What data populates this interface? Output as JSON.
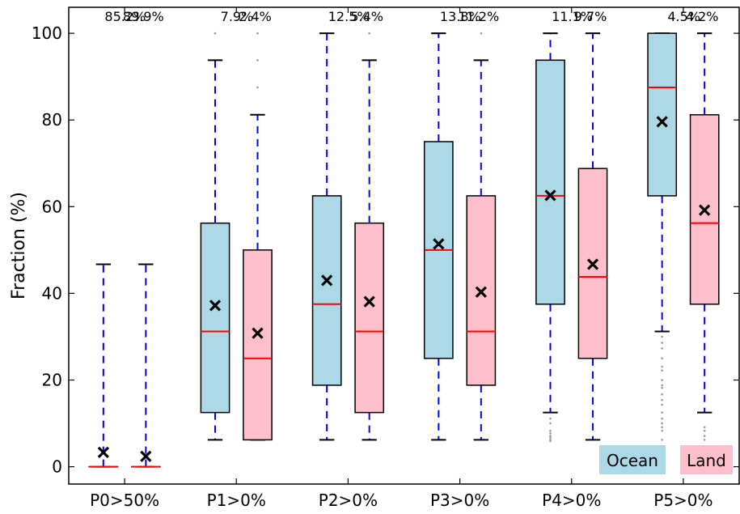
{
  "chart_data": {
    "type": "box",
    "ylabel": "Fraction (%)",
    "ylim": [
      -4,
      106
    ],
    "yticks": [
      0,
      20,
      40,
      60,
      80,
      100
    ],
    "categories": [
      "P0>50%",
      "P1>0%",
      "P2>0%",
      "P3>0%",
      "P4>0%",
      "P5>0%"
    ],
    "series": [
      {
        "name": "Ocean",
        "box_color": "#add8e6",
        "percent_labels": [
          "85.2%",
          "7.9%",
          "12.5%",
          "13.8%",
          "11.1%",
          "4.5%"
        ],
        "boxes": [
          {
            "whislo": 0,
            "q1": 0,
            "median": 0,
            "q3": 0,
            "whishi": 46.7,
            "mean": 3.3,
            "fliers": []
          },
          {
            "whislo": 6.2,
            "q1": 12.5,
            "median": 31.2,
            "q3": 56.2,
            "whishi": 93.8,
            "mean": 37.2,
            "fliers": [
              100
            ]
          },
          {
            "whislo": 6.2,
            "q1": 18.8,
            "median": 37.5,
            "q3": 62.5,
            "whishi": 100,
            "mean": 43.0,
            "fliers": []
          },
          {
            "whislo": 6.2,
            "q1": 25,
            "median": 50,
            "q3": 75,
            "whishi": 100,
            "mean": 51.4,
            "fliers": []
          },
          {
            "whislo": 12.5,
            "q1": 37.5,
            "median": 62.5,
            "q3": 93.8,
            "whishi": 100,
            "mean": 62.6,
            "fliers": [
              11.1,
              10.0,
              8.3,
              7.7,
              7.1,
              6.7,
              6.2,
              5.9
            ]
          },
          {
            "whislo": 31.2,
            "q1": 62.5,
            "median": 87.5,
            "q3": 100,
            "whishi": 100,
            "mean": 79.6,
            "fliers": [
              30,
              28.6,
              27.3,
              25,
              23.1,
              22.2,
              20,
              18.8,
              18.2,
              16.7,
              15.4,
              14.3,
              12.5,
              11.1,
              10,
              9.1,
              8.3,
              6.2
            ]
          }
        ]
      },
      {
        "name": "Land",
        "box_color": "#ffc0cb",
        "percent_labels": [
          "89.9%",
          "2.4%",
          "5.4%",
          "11.2%",
          "9.7%",
          "4.2%"
        ],
        "boxes": [
          {
            "whislo": 0,
            "q1": 0,
            "median": 0,
            "q3": 0,
            "whishi": 46.7,
            "mean": 2.4,
            "fliers": []
          },
          {
            "whislo": 6.2,
            "q1": 6.2,
            "median": 25,
            "q3": 50,
            "whishi": 81.2,
            "mean": 30.8,
            "fliers": [
              87.5,
              93.8,
              100
            ]
          },
          {
            "whislo": 6.2,
            "q1": 12.5,
            "median": 31.2,
            "q3": 56.2,
            "whishi": 93.8,
            "mean": 38.1,
            "fliers": [
              100
            ]
          },
          {
            "whislo": 6.2,
            "q1": 18.8,
            "median": 31.2,
            "q3": 62.5,
            "whishi": 93.8,
            "mean": 40.3,
            "fliers": [
              100
            ]
          },
          {
            "whislo": 6.2,
            "q1": 25,
            "median": 43.8,
            "q3": 68.8,
            "whishi": 100,
            "mean": 46.7,
            "fliers": []
          },
          {
            "whislo": 12.5,
            "q1": 37.5,
            "median": 56.2,
            "q3": 81.2,
            "whishi": 100,
            "mean": 59.2,
            "fliers": [
              9.1,
              8.3,
              7.1,
              6.2
            ]
          }
        ]
      }
    ],
    "colors": {
      "whisker": "#0000ff",
      "median": "#ff0000",
      "mean_marker": "#000000",
      "box_edge": "#000000",
      "flier": "#999999"
    },
    "legend": {
      "placement": "bottom-right",
      "entries": [
        "Ocean",
        "Land"
      ]
    },
    "grid": false
  }
}
